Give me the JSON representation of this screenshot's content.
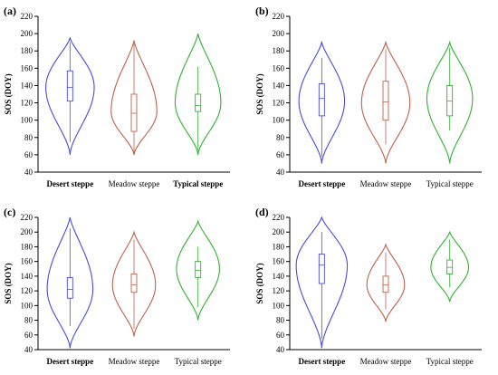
{
  "chart_data": [
    {
      "type": "violin",
      "panel_label": "(a)",
      "ylabel": "SOS (DOY)",
      "ylim": [
        40,
        220
      ],
      "yticks": [
        40,
        60,
        80,
        100,
        120,
        140,
        160,
        180,
        200,
        220
      ],
      "categories": [
        "Desert steppe",
        "Meadow steppe",
        "Typical steppe"
      ],
      "series": [
        {
          "category": "Desert steppe",
          "color": "#4a4ae0",
          "min": 60,
          "q1": 122,
          "median": 138,
          "q3": 157,
          "max": 195,
          "whisker_low": 75,
          "whisker_high": 190,
          "mode": 138,
          "width": 0.9
        },
        {
          "category": "Meadow steppe",
          "color": "#c0604a",
          "min": 60,
          "q1": 87,
          "median": 108,
          "q3": 130,
          "max": 192,
          "whisker_low": 62,
          "whisker_high": 188,
          "mode": 110,
          "width": 0.85
        },
        {
          "category": "Typical steppe",
          "color": "#2db52d",
          "min": 60,
          "q1": 110,
          "median": 117,
          "q3": 130,
          "max": 200,
          "whisker_low": 65,
          "whisker_high": 162,
          "mode": 120,
          "width": 0.85
        }
      ]
    },
    {
      "type": "violin",
      "panel_label": "(b)",
      "ylabel": "SOS (DOY)",
      "ylim": [
        40,
        220
      ],
      "yticks": [
        40,
        60,
        80,
        100,
        120,
        140,
        160,
        180,
        200,
        220
      ],
      "categories": [
        "Desert steppe",
        "Meadow steppe",
        "Typical steppe"
      ],
      "series": [
        {
          "category": "Desert steppe",
          "color": "#4a4ae0",
          "min": 50,
          "q1": 105,
          "median": 125,
          "q3": 142,
          "max": 190,
          "whisker_low": 58,
          "whisker_high": 172,
          "mode": 122,
          "width": 0.85
        },
        {
          "category": "Meadow steppe",
          "color": "#c0604a",
          "min": 50,
          "q1": 100,
          "median": 121,
          "q3": 145,
          "max": 190,
          "whisker_low": 72,
          "whisker_high": 182,
          "mode": 120,
          "width": 0.9
        },
        {
          "category": "Typical steppe",
          "color": "#2db52d",
          "min": 50,
          "q1": 105,
          "median": 122,
          "q3": 140,
          "max": 190,
          "whisker_low": 88,
          "whisker_high": 184,
          "mode": 125,
          "width": 0.85
        }
      ]
    },
    {
      "type": "violin",
      "panel_label": "(c)",
      "ylabel": "SOS (DOY)",
      "ylim": [
        40,
        220
      ],
      "yticks": [
        40,
        60,
        80,
        100,
        120,
        140,
        160,
        180,
        200,
        220
      ],
      "categories": [
        "Desert steppe",
        "Meadow steppe",
        "Typical steppe"
      ],
      "series": [
        {
          "category": "Desert steppe",
          "color": "#4a4ae0",
          "min": 42,
          "q1": 110,
          "median": 122,
          "q3": 138,
          "max": 220,
          "whisker_low": 72,
          "whisker_high": 205,
          "mode": 122,
          "width": 0.85
        },
        {
          "category": "Meadow steppe",
          "color": "#c0604a",
          "min": 58,
          "q1": 118,
          "median": 128,
          "q3": 143,
          "max": 200,
          "whisker_low": 68,
          "whisker_high": 190,
          "mode": 128,
          "width": 0.8
        },
        {
          "category": "Typical steppe",
          "color": "#2db52d",
          "min": 80,
          "q1": 138,
          "median": 148,
          "q3": 160,
          "max": 215,
          "whisker_low": 98,
          "whisker_high": 180,
          "mode": 150,
          "width": 0.8
        }
      ]
    },
    {
      "type": "violin",
      "panel_label": "(d)",
      "ylabel": "SOS (DOY)",
      "ylim": [
        40,
        220
      ],
      "yticks": [
        40,
        60,
        80,
        100,
        120,
        140,
        160,
        180,
        200,
        220
      ],
      "categories": [
        "Desert steppe",
        "Meadow steppe",
        "Typical steppe"
      ],
      "series": [
        {
          "category": "Desert steppe",
          "color": "#4a4ae0",
          "min": 42,
          "q1": 130,
          "median": 155,
          "q3": 170,
          "max": 220,
          "whisker_low": 55,
          "whisker_high": 200,
          "mode": 155,
          "width": 0.95
        },
        {
          "category": "Meadow steppe",
          "color": "#c0604a",
          "min": 78,
          "q1": 118,
          "median": 128,
          "q3": 140,
          "max": 183,
          "whisker_low": 95,
          "whisker_high": 172,
          "mode": 128,
          "width": 0.7
        },
        {
          "category": "Typical steppe",
          "color": "#2db52d",
          "min": 105,
          "q1": 143,
          "median": 152,
          "q3": 162,
          "max": 200,
          "whisker_low": 125,
          "whisker_high": 190,
          "mode": 152,
          "width": 0.7
        }
      ]
    }
  ]
}
